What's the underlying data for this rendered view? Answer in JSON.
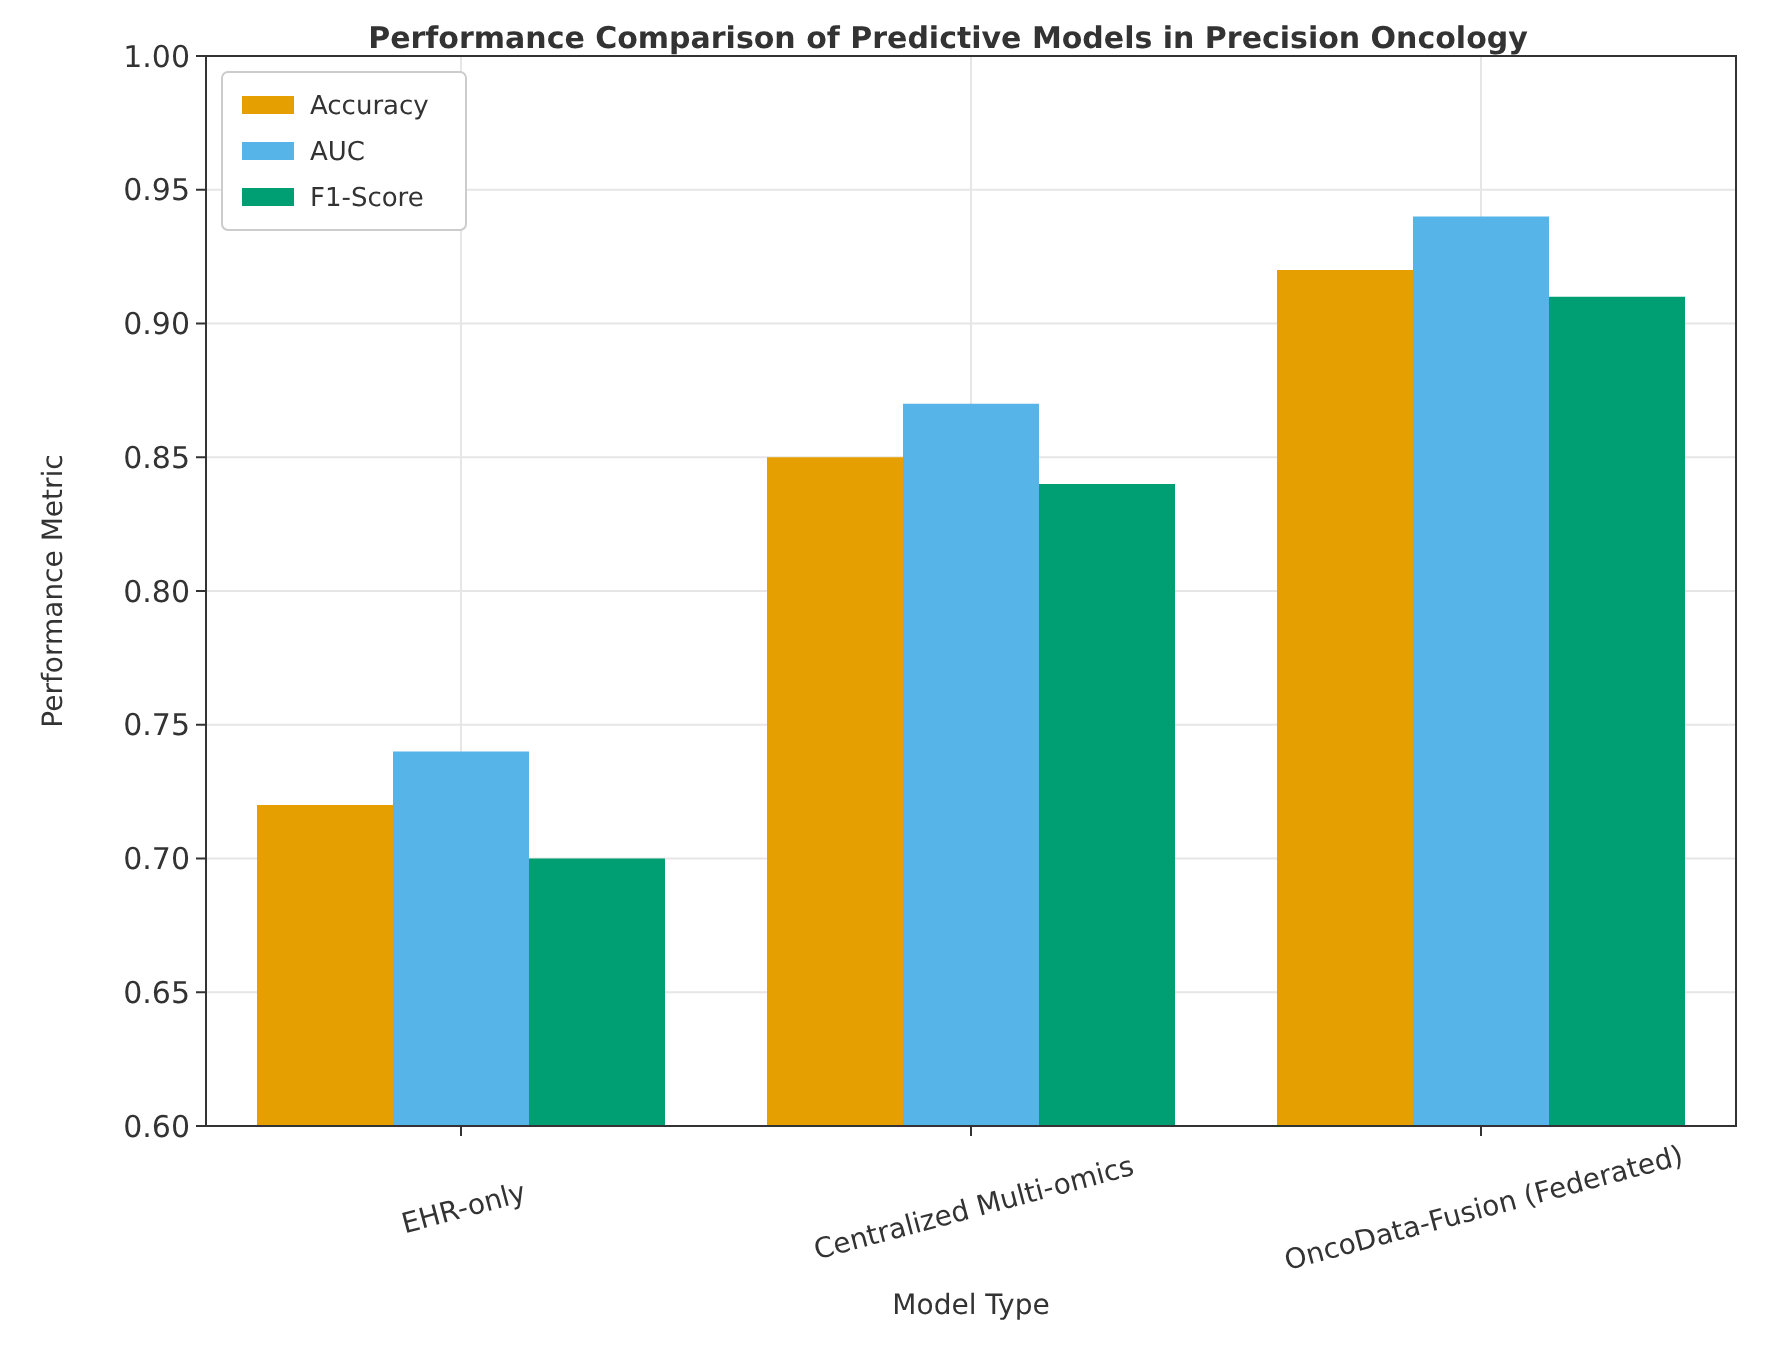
{
  "chart_data": {
    "type": "bar",
    "title": "Performance Comparison of Predictive Models in Precision Oncology",
    "xlabel": "Model Type",
    "ylabel": "Performance Metric",
    "categories": [
      "EHR-only",
      "Centralized Multi-omics",
      "OncoData-Fusion (Federated)"
    ],
    "series": [
      {
        "name": "Accuracy",
        "color": "#e69f00",
        "values": [
          0.72,
          0.85,
          0.92
        ]
      },
      {
        "name": "AUC",
        "color": "#56b4e9",
        "values": [
          0.74,
          0.87,
          0.94
        ]
      },
      {
        "name": "F1-Score",
        "color": "#009e73",
        "values": [
          0.7,
          0.84,
          0.91
        ]
      }
    ],
    "ylim": [
      0.6,
      1.0
    ],
    "yticks": [
      {
        "value": 0.6,
        "label": "0.60"
      },
      {
        "value": 0.65,
        "label": "0.65"
      },
      {
        "value": 0.7,
        "label": "0.70"
      },
      {
        "value": 0.75,
        "label": "0.75"
      },
      {
        "value": 0.8,
        "label": "0.80"
      },
      {
        "value": 0.85,
        "label": "0.85"
      },
      {
        "value": 0.9,
        "label": "0.90"
      },
      {
        "value": 0.95,
        "label": "0.95"
      },
      {
        "value": 1.0,
        "label": "1.00"
      }
    ],
    "grid": true,
    "legend": "top left"
  }
}
